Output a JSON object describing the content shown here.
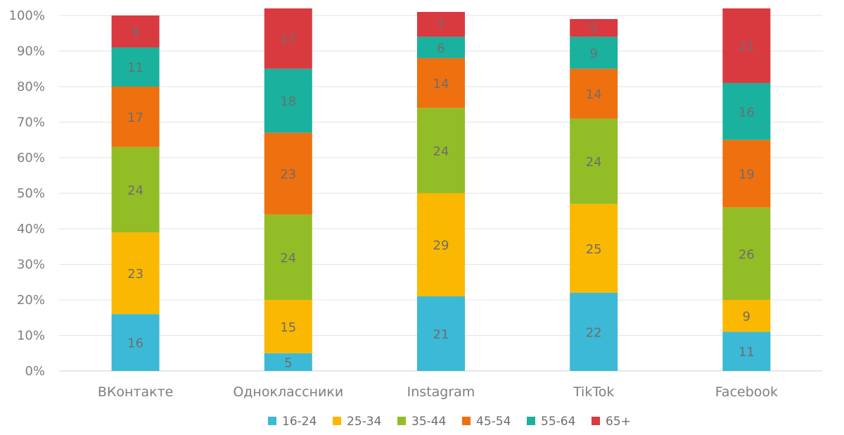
{
  "chart_data": {
    "type": "bar",
    "stacked": true,
    "title": "",
    "xlabel": "",
    "ylabel": "",
    "ylim": [
      0,
      100
    ],
    "yticks": [
      "0%",
      "10%",
      "20%",
      "30%",
      "40%",
      "50%",
      "60%",
      "70%",
      "80%",
      "90%",
      "100%"
    ],
    "categories": [
      "ВКонтакте",
      "Одноклассники",
      "Instagram",
      "TikTok",
      "Facebook"
    ],
    "series": [
      {
        "name": "16-24",
        "color": "#3cb9d6",
        "values": [
          16,
          5,
          21,
          22,
          11
        ]
      },
      {
        "name": "25-34",
        "color": "#fbb800",
        "values": [
          23,
          15,
          29,
          25,
          9
        ]
      },
      {
        "name": "35-44",
        "color": "#93bd26",
        "values": [
          24,
          24,
          24,
          24,
          26
        ]
      },
      {
        "name": "45-54",
        "color": "#ee700f",
        "values": [
          17,
          23,
          14,
          14,
          19
        ]
      },
      {
        "name": "55-64",
        "color": "#1ab19f",
        "values": [
          11,
          18,
          6,
          9,
          16
        ]
      },
      {
        "name": "65+",
        "color": "#d93a40",
        "values": [
          9,
          17,
          7,
          5,
          21
        ]
      }
    ],
    "grid": true,
    "legend_position": "bottom"
  }
}
